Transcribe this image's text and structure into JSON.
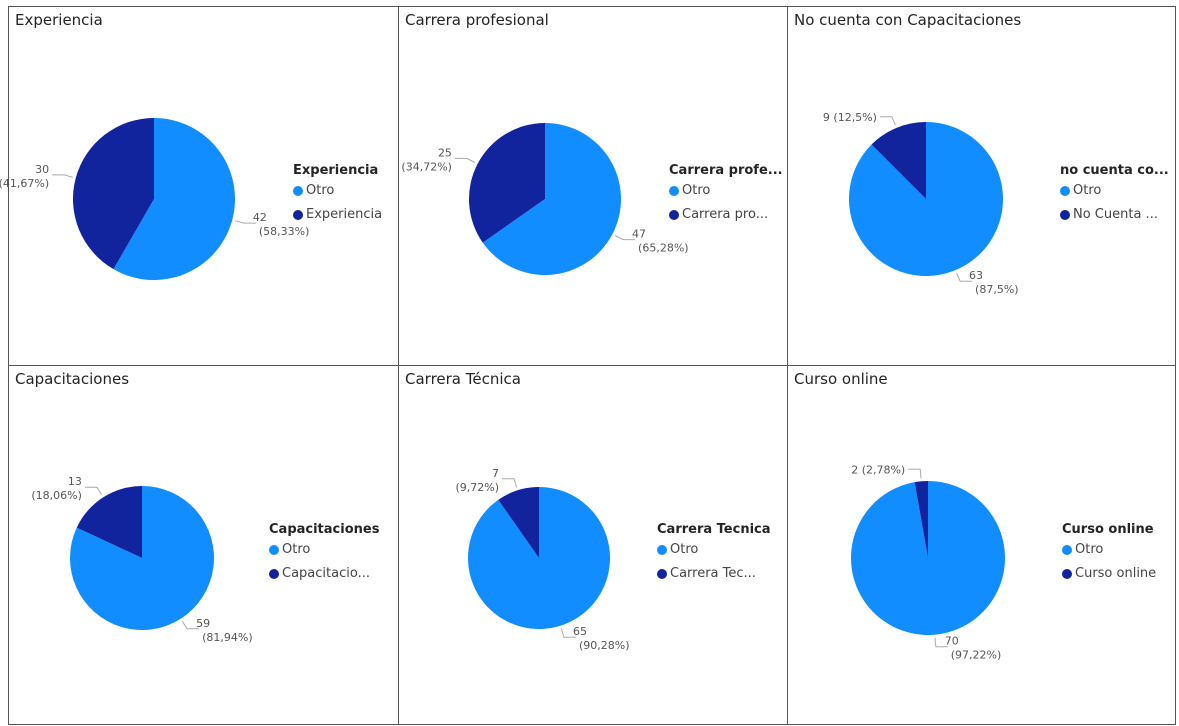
{
  "colors": {
    "otro": "#118DFF",
    "main": "#12239E"
  },
  "chart_data": [
    {
      "type": "pie",
      "title": "Experiencia",
      "legend_title": "Experiencia",
      "legend_labels": [
        "Otro",
        "Experiencia"
      ],
      "slices": [
        {
          "value": 42,
          "count_label": "42",
          "pct_label": "(58,33%)"
        },
        {
          "value": 30,
          "count_label": "30",
          "pct_label": "(41,67%)"
        }
      ]
    },
    {
      "type": "pie",
      "title": "Carrera profesional",
      "legend_title": "Carrera profe...",
      "legend_labels": [
        "Otro",
        "Carrera pro..."
      ],
      "slices": [
        {
          "value": 47,
          "count_label": "47",
          "pct_label": "(65,28%)"
        },
        {
          "value": 25,
          "count_label": "25",
          "pct_label": "(34,72%)"
        }
      ]
    },
    {
      "type": "pie",
      "title": "No cuenta con Capacitaciones",
      "legend_title": "no cuenta co...",
      "legend_labels": [
        "Otro",
        "No Cuenta ..."
      ],
      "slices": [
        {
          "value": 63,
          "count_label": "63",
          "pct_label": "(87,5%)"
        },
        {
          "value": 9,
          "count_label": "9 (12,5%)",
          "pct_label": ""
        }
      ]
    },
    {
      "type": "pie",
      "title": "Capacitaciones",
      "legend_title": "Capacitaciones",
      "legend_labels": [
        "Otro",
        "Capacitacio..."
      ],
      "slices": [
        {
          "value": 59,
          "count_label": "59",
          "pct_label": "(81,94%)"
        },
        {
          "value": 13,
          "count_label": "13",
          "pct_label": "(18,06%)"
        }
      ]
    },
    {
      "type": "pie",
      "title": "Carrera Técnica",
      "legend_title": "Carrera Tecnica",
      "legend_labels": [
        "Otro",
        "Carrera Tec..."
      ],
      "slices": [
        {
          "value": 65,
          "count_label": "65",
          "pct_label": "(90,28%)"
        },
        {
          "value": 7,
          "count_label": "7",
          "pct_label": "(9,72%)"
        }
      ]
    },
    {
      "type": "pie",
      "title": "Curso online",
      "legend_title": "Curso online",
      "legend_labels": [
        "Otro",
        "Curso online"
      ],
      "slices": [
        {
          "value": 70,
          "count_label": "70",
          "pct_label": "(97,22%)"
        },
        {
          "value": 2,
          "count_label": "2 (2,78%)",
          "pct_label": ""
        }
      ]
    }
  ]
}
